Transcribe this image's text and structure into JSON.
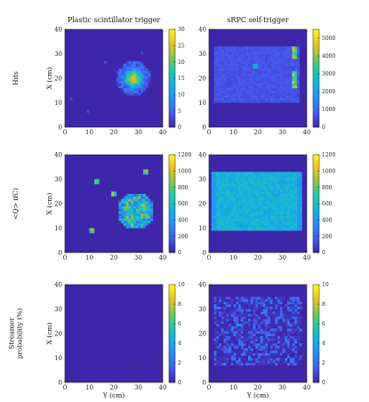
{
  "column_titles": [
    "Plastic scintillator trigger",
    "sRPC self-trigger"
  ],
  "row_labels": [
    [
      "Hits"
    ],
    [
      "<Q> (fC)"
    ],
    [
      "Streamer",
      "probability (%)"
    ]
  ],
  "axis_labels": {
    "x_axis": "Y (cm)",
    "y_axis": "X (cm)"
  },
  "colors": {
    "background": "#3e26a8",
    "low": "#3e26a8",
    "high": "#f9fb0e"
  },
  "chart_data": [
    {
      "type": "heatmap",
      "title": "Plastic scintillator trigger",
      "row": "Hits",
      "xlabel": "",
      "ylabel": "X (cm)",
      "xlim": [
        0,
        40
      ],
      "ylim": [
        0,
        40
      ],
      "xticks": [
        0,
        10,
        20,
        30,
        40
      ],
      "yticks": [
        0,
        10,
        20,
        30,
        40
      ],
      "colorbar": {
        "range": [
          0,
          30
        ],
        "ticks": [
          0,
          5,
          10,
          15,
          20,
          25,
          30
        ]
      },
      "features": "single circular hot spot centred near X=20, Y=28 (cm), radius about 6 cm, peak counts ~30"
    },
    {
      "type": "heatmap",
      "title": "sRPC self-trigger",
      "row": "Hits",
      "xlabel": "",
      "ylabel": "",
      "xlim": [
        0,
        40
      ],
      "ylim": [
        0,
        40
      ],
      "xticks": [
        0,
        10,
        20,
        30,
        40
      ],
      "yticks": [
        0,
        10,
        20,
        30,
        40
      ],
      "colorbar": {
        "range": [
          0,
          5500
        ],
        "ticks": [
          0,
          1000,
          2000,
          3000,
          4000,
          5000
        ]
      },
      "features": "rectangular active area Y 2-37 cm, X 10-33 cm at low level; hot columns near Y=35 cm at X~31 and X~20; small spot at Y~19, X~25"
    },
    {
      "type": "heatmap",
      "title": "",
      "row": "<Q> (fC)",
      "xlabel": "",
      "ylabel": "X (cm)",
      "xlim": [
        0,
        40
      ],
      "ylim": [
        0,
        40
      ],
      "xticks": [
        0,
        10,
        20,
        30,
        40
      ],
      "yticks": [
        0,
        10,
        20,
        30,
        40
      ],
      "colorbar": {
        "range": [
          0,
          1200
        ],
        "ticks": [
          0,
          200,
          400,
          600,
          800,
          1000,
          1200
        ]
      },
      "features": "circular region centred near X=17, Y=29 (cm), radius about 7 cm, values ~600-800 fC, a few isolated pixels outside"
    },
    {
      "type": "heatmap",
      "title": "",
      "row": "<Q> (fC)",
      "xlabel": "",
      "ylabel": "",
      "xlim": [
        0,
        40
      ],
      "ylim": [
        0,
        40
      ],
      "xticks": [
        0,
        10,
        20,
        30,
        40
      ],
      "yticks": [
        0,
        10,
        20,
        30,
        40
      ],
      "colorbar": {
        "range": [
          0,
          1200
        ],
        "ticks": [
          0,
          200,
          400,
          600,
          800,
          1000,
          1200
        ]
      },
      "features": "rectangular area Y 1-38 cm, X 9-33 cm filled with ~500-700 fC, edges slightly lower"
    },
    {
      "type": "heatmap",
      "title": "",
      "row": "Streamer probability (%)",
      "xlabel": "Y (cm)",
      "ylabel": "X (cm)",
      "xlim": [
        0,
        40
      ],
      "ylim": [
        0,
        40
      ],
      "xticks": [
        0,
        10,
        20,
        30,
        40
      ],
      "yticks": [
        0,
        10,
        20,
        30,
        40
      ],
      "colorbar": {
        "range": [
          0,
          10
        ],
        "ticks": [
          0,
          2,
          4,
          6,
          8,
          10
        ]
      },
      "features": "almost all zero; a few isolated pixels near Y=25-32, X=14-21 with values 4-8 %"
    },
    {
      "type": "heatmap",
      "title": "",
      "row": "Streamer probability (%)",
      "xlabel": "Y (cm)",
      "ylabel": "",
      "xlim": [
        0,
        40
      ],
      "ylim": [
        0,
        40
      ],
      "xticks": [
        0,
        10,
        20,
        30,
        40
      ],
      "yticks": [
        0,
        10,
        20,
        30,
        40
      ],
      "colorbar": {
        "range": [
          0,
          10
        ],
        "ticks": [
          0,
          2,
          4,
          6,
          8,
          10
        ]
      },
      "features": "scattered low-level pixels over Y 2-38 cm, X 7-35 cm, values 1-3 %"
    }
  ]
}
